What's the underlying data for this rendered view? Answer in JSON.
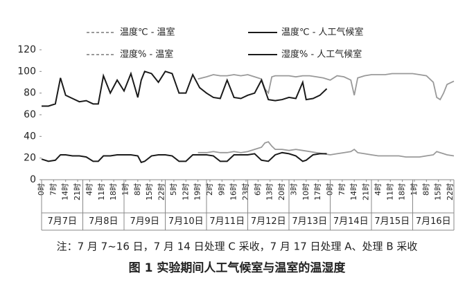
{
  "chart_data": {
    "type": "line",
    "xlim": [
      0,
      240
    ],
    "ylim": [
      0,
      120
    ],
    "yticks": [
      0,
      20,
      40,
      60,
      80,
      100,
      120
    ],
    "xticks": [
      {
        "value": 0,
        "label": "0时"
      },
      {
        "value": 7,
        "label": "7时"
      },
      {
        "value": 14,
        "label": "14时"
      },
      {
        "value": 21,
        "label": "21时"
      },
      {
        "value": 28,
        "label": "4时"
      },
      {
        "value": 35,
        "label": "11时"
      },
      {
        "value": 42,
        "label": "18时"
      },
      {
        "value": 49,
        "label": "1时"
      },
      {
        "value": 56,
        "label": "8时"
      },
      {
        "value": 63,
        "label": "15时"
      },
      {
        "value": 70,
        "label": "22时"
      },
      {
        "value": 77,
        "label": "5时"
      },
      {
        "value": 84,
        "label": "12时"
      },
      {
        "value": 91,
        "label": "19时"
      },
      {
        "value": 98,
        "label": "2时"
      },
      {
        "value": 105,
        "label": "9时"
      },
      {
        "value": 112,
        "label": "16时"
      },
      {
        "value": 119,
        "label": "23时"
      },
      {
        "value": 126,
        "label": "6时"
      },
      {
        "value": 133,
        "label": "13时"
      },
      {
        "value": 140,
        "label": "20时"
      },
      {
        "value": 147,
        "label": "3时"
      },
      {
        "value": 154,
        "label": "10时"
      },
      {
        "value": 161,
        "label": "17时"
      },
      {
        "value": 168,
        "label": "0时"
      },
      {
        "value": 175,
        "label": "7时"
      },
      {
        "value": 182,
        "label": "14时"
      },
      {
        "value": 189,
        "label": "21时"
      },
      {
        "value": 196,
        "label": "4时"
      },
      {
        "value": 203,
        "label": "11时"
      },
      {
        "value": 210,
        "label": "18时"
      },
      {
        "value": 217,
        "label": "1时"
      },
      {
        "value": 224,
        "label": "8时"
      },
      {
        "value": 231,
        "label": "15时"
      },
      {
        "value": 238,
        "label": "22时"
      }
    ],
    "x_groups": [
      "7月7日",
      "7月8日",
      "7月9日",
      "7月10日",
      "7月11日",
      "7月12日",
      "7月13日",
      "7月14日",
      "7月15日",
      "7月16日"
    ],
    "series": [
      {
        "name": "温度℃ - 温室",
        "color": "#999999",
        "dashed": true,
        "x": [
          91,
          96,
          100,
          104,
          108,
          112,
          116,
          120,
          124,
          128,
          130,
          132,
          134,
          136,
          140,
          144,
          148,
          152,
          156,
          160,
          164,
          168,
          172,
          176,
          180,
          182,
          184,
          188,
          192,
          196,
          200,
          204,
          208,
          212,
          216,
          220,
          224,
          228,
          230,
          232,
          234,
          236,
          240
        ],
        "values": [
          25,
          25,
          26,
          25,
          25,
          26,
          25,
          26,
          28,
          30,
          34,
          35,
          31,
          28,
          28,
          27,
          28,
          27,
          26,
          25,
          24,
          23,
          24,
          25,
          26,
          28,
          25,
          24,
          23,
          22,
          22,
          22,
          22,
          21,
          21,
          21,
          22,
          23,
          26,
          25,
          24,
          23,
          22
        ]
      },
      {
        "name": "温度℃ - 人工气候室",
        "color": "#1a1a1a",
        "dashed": false,
        "x": [
          0,
          4,
          8,
          11,
          14,
          18,
          22,
          26,
          30,
          33,
          36,
          40,
          44,
          48,
          52,
          56,
          58,
          60,
          64,
          68,
          72,
          76,
          80,
          84,
          88,
          92,
          96,
          100,
          104,
          108,
          112,
          116,
          120,
          124,
          128,
          132,
          136,
          140,
          144,
          148,
          152,
          154,
          158,
          162,
          166
        ],
        "values": [
          19,
          17,
          18,
          23,
          23,
          22,
          22,
          21,
          17,
          17,
          22,
          22,
          23,
          23,
          23,
          22,
          16,
          17,
          22,
          23,
          23,
          22,
          17,
          17,
          23,
          23,
          23,
          22,
          17,
          17,
          23,
          23,
          23,
          24,
          18,
          17,
          23,
          25,
          24,
          22,
          17,
          18,
          23,
          24,
          24
        ]
      },
      {
        "name": "湿度% - 温室",
        "color": "#999999",
        "dashed": true,
        "x": [
          91,
          96,
          100,
          104,
          108,
          112,
          116,
          120,
          124,
          128,
          130,
          132,
          134,
          136,
          140,
          144,
          148,
          152,
          156,
          160,
          164,
          168,
          172,
          176,
          180,
          182,
          184,
          188,
          192,
          196,
          200,
          204,
          208,
          212,
          216,
          220,
          224,
          228,
          230,
          232,
          234,
          236,
          240
        ],
        "values": [
          93,
          95,
          97,
          96,
          96,
          97,
          96,
          97,
          95,
          93,
          84,
          80,
          95,
          96,
          96,
          96,
          95,
          96,
          96,
          95,
          94,
          92,
          96,
          95,
          92,
          78,
          94,
          96,
          97,
          97,
          97,
          98,
          98,
          98,
          98,
          97,
          96,
          90,
          76,
          74,
          80,
          88,
          91
        ]
      },
      {
        "name": "湿度% - 人工气候室",
        "color": "#1a1a1a",
        "dashed": false,
        "x": [
          0,
          4,
          8,
          11,
          14,
          18,
          22,
          26,
          30,
          33,
          36,
          40,
          44,
          48,
          52,
          56,
          58,
          60,
          64,
          68,
          72,
          76,
          80,
          84,
          88,
          92,
          96,
          100,
          104,
          108,
          112,
          116,
          120,
          124,
          128,
          132,
          136,
          140,
          144,
          148,
          152,
          154,
          158,
          162,
          166
        ],
        "values": [
          68,
          68,
          70,
          94,
          78,
          75,
          72,
          73,
          70,
          70,
          96,
          80,
          92,
          82,
          98,
          76,
          92,
          100,
          98,
          90,
          100,
          98,
          80,
          80,
          97,
          85,
          80,
          76,
          75,
          92,
          76,
          75,
          78,
          80,
          92,
          74,
          73,
          74,
          76,
          75,
          90,
          74,
          75,
          78,
          84
        ]
      }
    ]
  },
  "note": "注：7 月 7~16 日，7 月 14 日处理 C 采收，7 月 17 日处理 A、处理 B 采收",
  "caption": "图 1 实验期间人工气候室与温室的温湿度"
}
